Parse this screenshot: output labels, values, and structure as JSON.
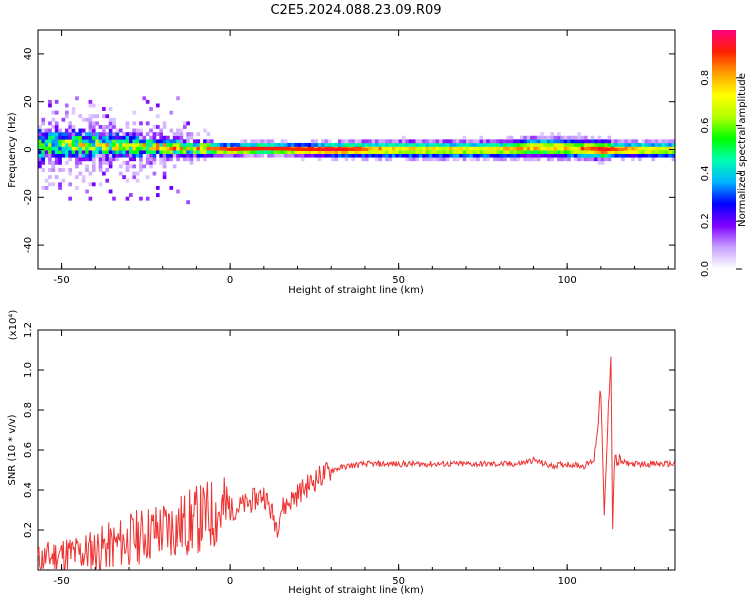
{
  "title": "C2E5.2024.088.23.09.R09",
  "chart_data": [
    {
      "type": "heatmap",
      "title": "C2E5.2024.088.23.09.R09",
      "xlabel": "Height of straight line (km)",
      "ylabel": "Frequency (Hz)",
      "xlim": [
        -57,
        132
      ],
      "ylim": [
        -50,
        50
      ],
      "xticks": [
        "-50",
        "0",
        "50",
        "100"
      ],
      "yticks": [
        "-40",
        "-20",
        "0",
        "20",
        "40"
      ],
      "colorbar": {
        "label": "Normalized spectral amplitude",
        "range": [
          0,
          1
        ],
        "ticks": [
          "0.0",
          "0.2",
          "0.4",
          "0.6",
          "0.8"
        ],
        "colors": [
          "#ffffff",
          "#c8a0ff",
          "#8000ff",
          "#0000ff",
          "#00b4ff",
          "#00ffb0",
          "#00ff00",
          "#b4ff00",
          "#ffff00",
          "#ffa000",
          "#ff2000",
          "#ff0080"
        ]
      },
      "signal_band": {
        "height_km": [
          -57,
          -40,
          -30,
          -20,
          -10,
          0,
          10,
          20,
          30,
          50,
          80,
          90,
          100,
          110,
          115,
          132
        ],
        "peak_frequency_hz": [
          2,
          2,
          1.5,
          1,
          0.5,
          0,
          0.5,
          0,
          0,
          0,
          0,
          1,
          0.5,
          0,
          0,
          0
        ],
        "half_width_hz": [
          7,
          6,
          5,
          4,
          3,
          2.5,
          2.5,
          2.5,
          3,
          3.5,
          3.5,
          4,
          4,
          4,
          3,
          3.5
        ],
        "peak_amplitude": [
          0.55,
          0.6,
          0.62,
          0.7,
          0.8,
          0.92,
          0.92,
          0.9,
          0.95,
          0.75,
          0.75,
          0.8,
          0.75,
          0.95,
          0.85,
          0.7
        ]
      }
    },
    {
      "type": "line",
      "xlabel": "Height of straight line (km)",
      "ylabel": "SNR (10 * v/v)",
      "scale_label": "(x10⁴)",
      "xlim": [
        -57,
        132
      ],
      "ylim": [
        0,
        1.2
      ],
      "xticks": [
        "-50",
        "0",
        "50",
        "100"
      ],
      "yticks": [
        "0.2",
        "0.4",
        "0.6",
        "0.8",
        "1.0",
        "1.2"
      ],
      "series_color": "#ee3333",
      "x": [
        -57,
        -50,
        -45,
        -40,
        -35,
        -30,
        -25,
        -20,
        -15,
        -10,
        -5,
        0,
        5,
        10,
        12,
        14,
        15,
        20,
        25,
        30,
        35,
        40,
        50,
        60,
        70,
        80,
        85,
        88,
        90,
        95,
        100,
        105,
        108,
        110,
        111,
        112,
        113,
        113.5,
        114,
        115,
        120,
        125,
        132
      ],
      "y": [
        0.05,
        0.08,
        0.08,
        0.1,
        0.12,
        0.15,
        0.18,
        0.2,
        0.22,
        0.25,
        0.28,
        0.3,
        0.33,
        0.38,
        0.3,
        0.22,
        0.3,
        0.38,
        0.45,
        0.5,
        0.52,
        0.53,
        0.53,
        0.53,
        0.53,
        0.53,
        0.53,
        0.54,
        0.55,
        0.52,
        0.53,
        0.52,
        0.55,
        0.9,
        0.25,
        0.7,
        1.1,
        0.2,
        0.55,
        0.54,
        0.53,
        0.53,
        0.53
      ]
    }
  ]
}
